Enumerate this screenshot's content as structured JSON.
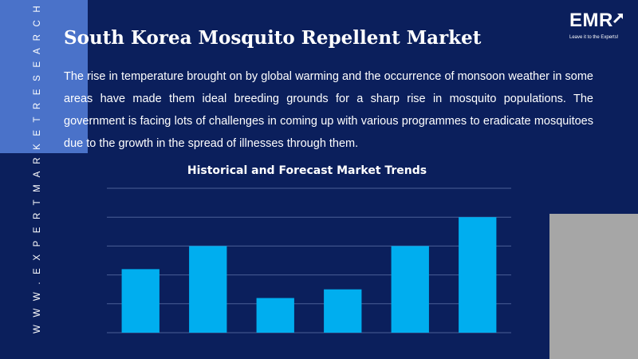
{
  "side_url": "W W W . E X P E R T M A R K E T R E S E A R C H . C O M",
  "header": {
    "title": "South Korea Mosquito Repellent Market"
  },
  "description": "The rise in temperature brought on by global warming and the occurrence of monsoon weather in some areas have made them ideal breeding grounds for a sharp rise in mosquito populations. The government is facing lots of challenges in coming up with various programmes to eradicate mosquitoes due to the growth in the spread of illnesses through them.",
  "logo": {
    "mark": "EMR",
    "tagline": "Leave it to the Experts!"
  },
  "colors": {
    "background": "#0b1f5c",
    "accent": "#4a72c9",
    "bar": "#00aeef",
    "gray_block": "#a6a6a6"
  },
  "chart_data": {
    "type": "bar",
    "title": "Historical and Forecast Market Trends",
    "categories": [
      "",
      "",
      "",
      "",
      "",
      ""
    ],
    "values": [
      2.2,
      3.0,
      1.2,
      1.5,
      3.0,
      4.0
    ],
    "ylim": [
      0,
      5
    ],
    "grid": true,
    "axis_labels_shown": false
  }
}
